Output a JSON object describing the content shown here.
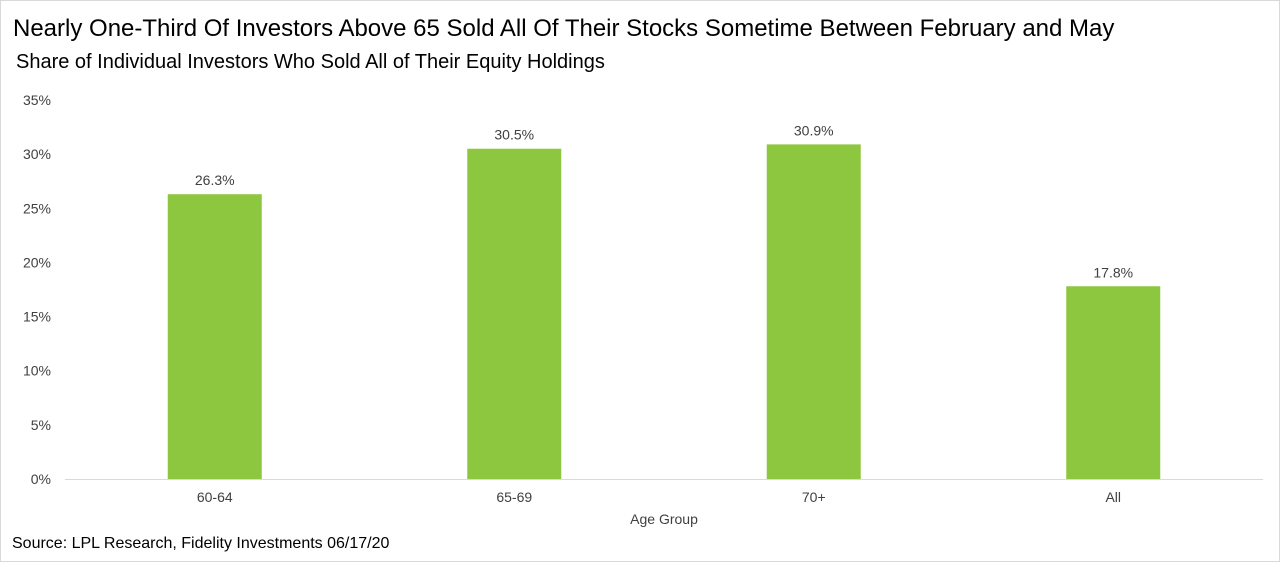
{
  "chart_data": {
    "type": "bar",
    "title": "Nearly One-Third Of Investors Above 65 Sold All Of Their Stocks Sometime Between February and May",
    "subtitle": "Share of Individual Investors Who Sold All of Their Equity Holdings",
    "xlabel": "Age Group",
    "ylabel": "",
    "categories": [
      "60-64",
      "65-69",
      "70+",
      "All"
    ],
    "values": [
      26.3,
      30.5,
      30.9,
      17.8
    ],
    "value_labels": [
      "26.3%",
      "30.5%",
      "30.9%",
      "17.8%"
    ],
    "ylim": [
      0,
      35
    ],
    "yticks": [
      0,
      5,
      10,
      15,
      20,
      25,
      30,
      35
    ],
    "ytick_labels": [
      "0%",
      "5%",
      "10%",
      "15%",
      "20%",
      "25%",
      "30%",
      "35%"
    ],
    "grid": false,
    "legend": "none",
    "bar_color": "#8dc63f",
    "source": "Source: LPL Research, Fidelity Investments 06/17/20"
  }
}
